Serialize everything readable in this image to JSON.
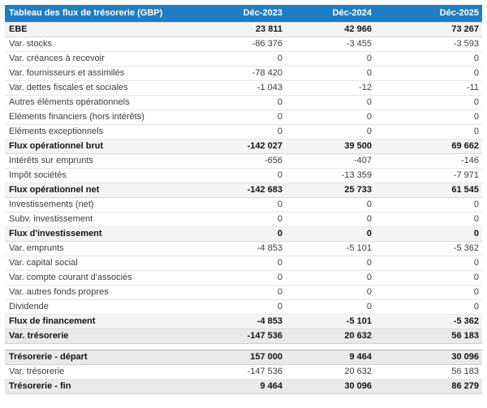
{
  "colors": {
    "header_bg": "#1e7dc3",
    "header_text": "#ffffff",
    "subtotal_row_bg": "#f4f4f4",
    "total_row_bg": "#e9e9e9"
  },
  "table": {
    "title": "Tableau des flux de trésorerie (GBP)",
    "columns": [
      "Déc-2023",
      "Déc-2024",
      "Déc-2025"
    ],
    "rows": [
      {
        "label": "EBE",
        "values": [
          "23 811",
          "42 966",
          "73 267"
        ],
        "style": "subtotal"
      },
      {
        "label": "Var. stocks",
        "values": [
          "-86 376",
          "-3 455",
          "-3 593"
        ],
        "style": "normal"
      },
      {
        "label": "Var. créances à recevoir",
        "values": [
          "0",
          "0",
          "0"
        ],
        "style": "normal"
      },
      {
        "label": "Var. fournisseurs et assimilés",
        "values": [
          "-78 420",
          "0",
          "0"
        ],
        "style": "normal"
      },
      {
        "label": "Var. dettes fiscales et sociales",
        "values": [
          "-1 043",
          "-12",
          "-11"
        ],
        "style": "normal"
      },
      {
        "label": "Autres éléments opérationnels",
        "values": [
          "0",
          "0",
          "0"
        ],
        "style": "normal"
      },
      {
        "label": "Eléments financiers (hors intérêts)",
        "values": [
          "0",
          "0",
          "0"
        ],
        "style": "normal"
      },
      {
        "label": "Eléments exceptionnels",
        "values": [
          "0",
          "0",
          "0"
        ],
        "style": "normal"
      },
      {
        "label": "Flux opérationnel brut",
        "values": [
          "-142 027",
          "39 500",
          "69 662"
        ],
        "style": "subtotal"
      },
      {
        "label": "Intérêts sur emprunts",
        "values": [
          "-656",
          "-407",
          "-146"
        ],
        "style": "normal"
      },
      {
        "label": "Impôt sociétés",
        "values": [
          "0",
          "-13 359",
          "-7 971"
        ],
        "style": "normal"
      },
      {
        "label": "Flux opérationnel net",
        "values": [
          "-142 683",
          "25 733",
          "61 545"
        ],
        "style": "subtotal"
      },
      {
        "label": "Investissements (net)",
        "values": [
          "0",
          "0",
          "0"
        ],
        "style": "normal"
      },
      {
        "label": "Subv. investissement",
        "values": [
          "0",
          "0",
          "0"
        ],
        "style": "normal"
      },
      {
        "label": "Flux d'investissement",
        "values": [
          "0",
          "0",
          "0"
        ],
        "style": "subtotal"
      },
      {
        "label": "Var. emprunts",
        "values": [
          "-4 853",
          "-5 101",
          "-5 362"
        ],
        "style": "normal"
      },
      {
        "label": "Var. capital social",
        "values": [
          "0",
          "0",
          "0"
        ],
        "style": "normal"
      },
      {
        "label": "Var. compte courant d'associés",
        "values": [
          "0",
          "0",
          "0"
        ],
        "style": "normal"
      },
      {
        "label": "Var. autres fonds propres",
        "values": [
          "0",
          "0",
          "0"
        ],
        "style": "normal"
      },
      {
        "label": "Dividende",
        "values": [
          "0",
          "0",
          "0"
        ],
        "style": "normal"
      },
      {
        "label": "Flux de financement",
        "values": [
          "-4 853",
          "-5 101",
          "-5 362"
        ],
        "style": "subtotal"
      },
      {
        "label": "Var. trésorerie",
        "values": [
          "-147 536",
          "20 632",
          "56 183"
        ],
        "style": "total"
      },
      {
        "style": "spacer"
      },
      {
        "label": "Trésorerie - départ",
        "values": [
          "157 000",
          "9 464",
          "30 096"
        ],
        "style": "total"
      },
      {
        "label": "Var. trésorerie",
        "values": [
          "-147 536",
          "20 632",
          "56 183"
        ],
        "style": "normal"
      },
      {
        "label": "Trésorerie - fin",
        "values": [
          "9 464",
          "30 096",
          "86 279"
        ],
        "style": "total"
      }
    ]
  }
}
